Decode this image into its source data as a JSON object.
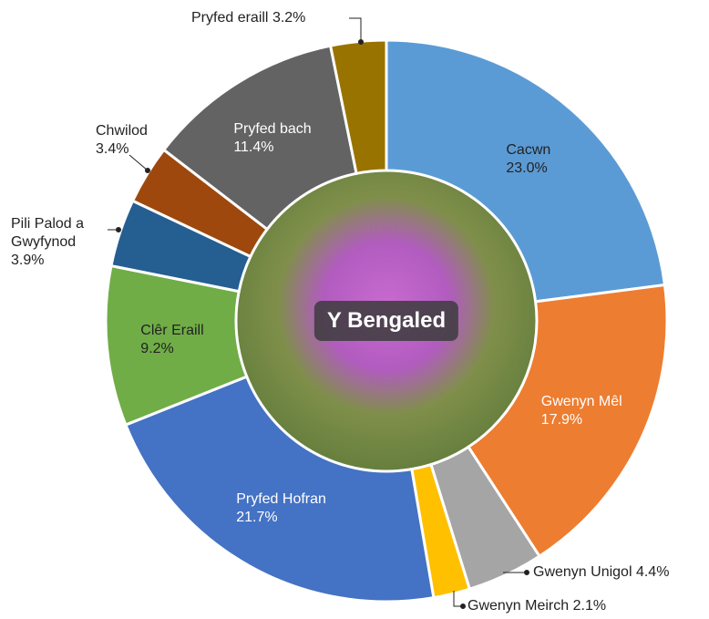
{
  "chart_data": {
    "type": "donut",
    "center_label": "Y Bengaled",
    "categories": [
      "Cacwn",
      "Gwenyn Mêl",
      "Gwenyn Unigol",
      "Gwenyn Meirch",
      "Pryfed Hofran",
      "Clêr Eraill",
      "Pili Palod a Gwyfynod",
      "Chwilod",
      "Pryfed bach",
      "Pryfed eraill"
    ],
    "values": [
      23.0,
      17.9,
      4.4,
      2.1,
      21.7,
      9.2,
      3.9,
      3.4,
      11.4,
      3.2
    ],
    "value_labels": [
      "23.0%",
      "17.9%",
      "4.4%",
      "2.1%",
      "21.7%",
      "9.2%",
      "3.9%",
      "3.4%",
      "11.4%",
      "3.2%"
    ],
    "colors": [
      "#5b9bd5",
      "#ed7d31",
      "#a5a5a5",
      "#ffc000",
      "#4472c4",
      "#70ad47",
      "#255e91",
      "#9e480e",
      "#636363",
      "#997300"
    ],
    "label_colors": [
      "#222222",
      "#ffffff",
      "#222222",
      "#222222",
      "#ffffff",
      "#222222",
      "#222222",
      "#222222",
      "#ffffff",
      "#222222"
    ]
  }
}
